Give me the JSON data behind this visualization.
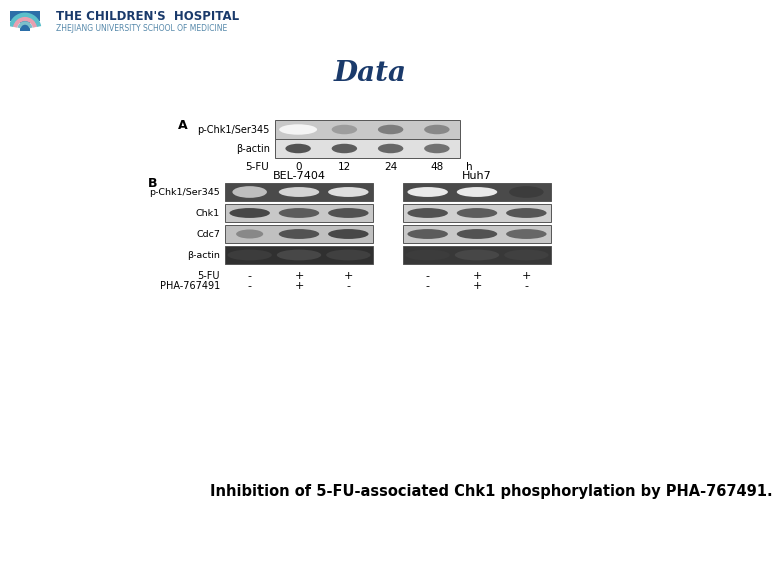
{
  "background_color": "#ffffff",
  "title": "Data",
  "title_fontsize": 20,
  "title_color": "#1a3a6b",
  "title_weight": "bold",
  "caption": "Inhibition of 5-FU-associated Chk1 phosphorylation by PHA-767491.",
  "caption_fontsize": 10.5,
  "caption_weight": "bold",
  "caption_font": "sans-serif",
  "logo_text_line1": "THE CHILDREN'S  HOSPITAL",
  "logo_text_line2": "ZHEJIANG UNIVERSITY SCHOOL OF MEDICINE",
  "panel_A_label": "A",
  "panel_B_label": "B",
  "panel_A_row_labels": [
    "p-Chk1/Ser345",
    "β-actin"
  ],
  "panel_A_col_label": "5-FU",
  "panel_A_time_labels": [
    "0",
    "12",
    "24",
    "48",
    "h"
  ],
  "panel_B_group_labels": [
    "BEL-7404",
    "Huh7"
  ],
  "panel_B_row_labels": [
    "p-Chk1/Ser345",
    "Chk1",
    "Cdc7",
    "β-actin"
  ],
  "panel_B_treatment_label1": "5-FU",
  "panel_B_treatment_label2": "PHA-767491",
  "panel_B_col_signs_fu_left": [
    "-",
    "+",
    "+"
  ],
  "panel_B_col_signs_fu_right": [
    "-",
    "+",
    "+"
  ],
  "panel_B_col_signs_pha_left": [
    "-",
    "+",
    "-"
  ],
  "panel_B_col_signs_pha_right": [
    "-",
    "+",
    "-"
  ]
}
